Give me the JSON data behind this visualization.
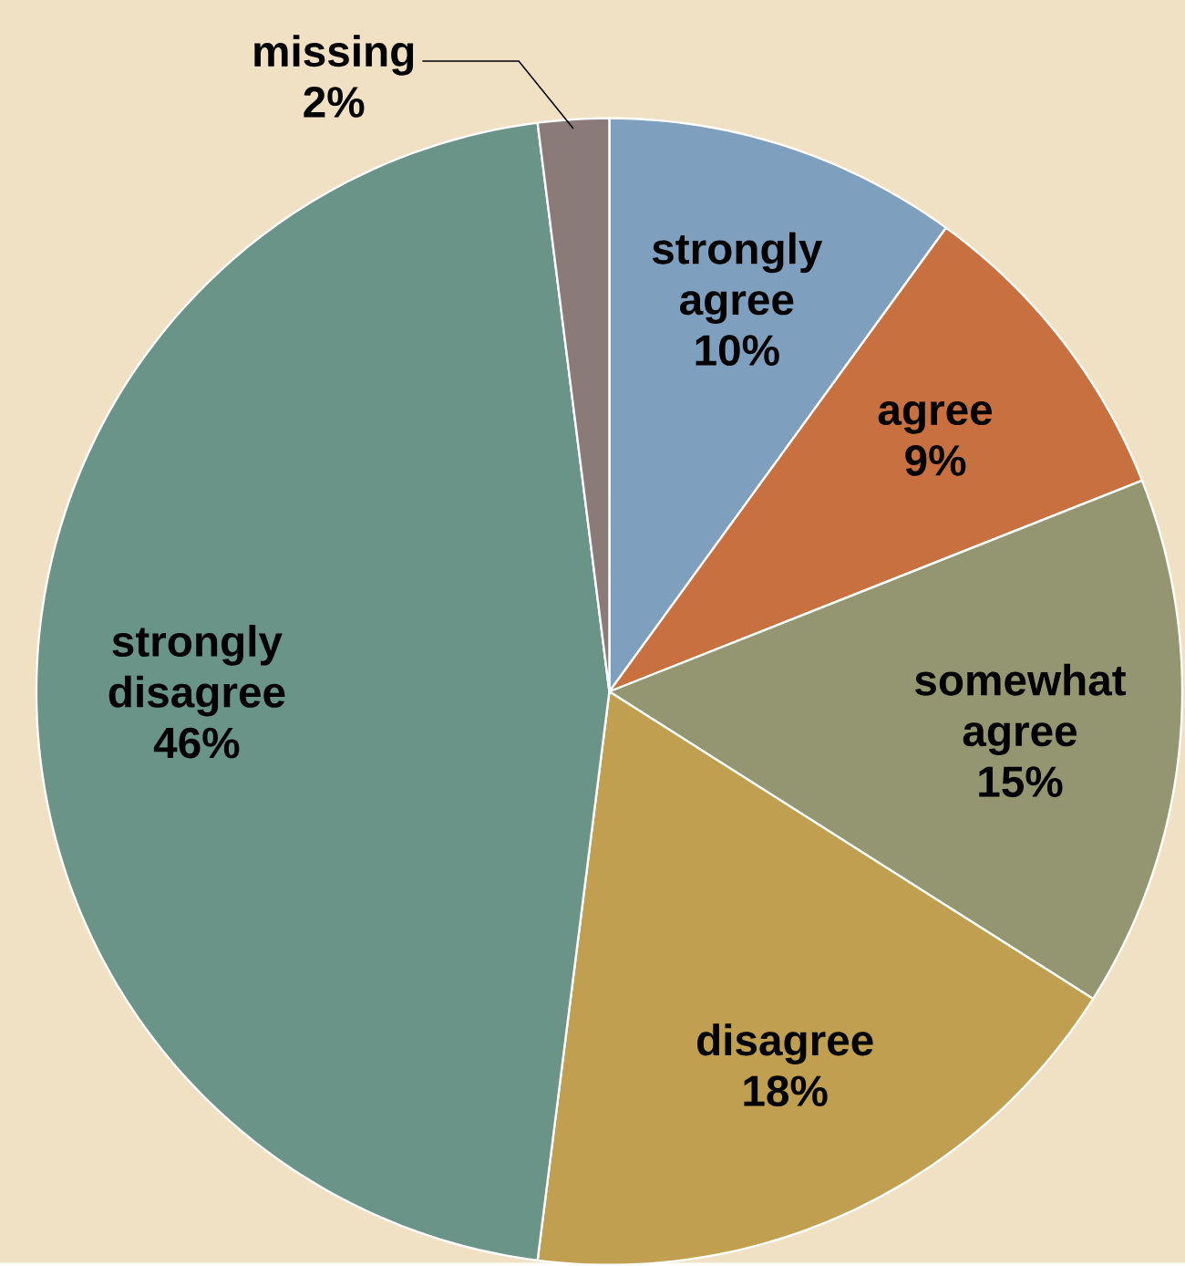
{
  "chart_data": {
    "type": "pie",
    "categories": [
      "strongly agree",
      "agree",
      "somewhat agree",
      "disagree",
      "strongly disagree",
      "missing"
    ],
    "values": [
      10,
      9,
      15,
      18,
      46,
      2
    ],
    "value_labels": [
      "10%",
      "9%",
      "15%",
      "18%",
      "46%",
      "2%"
    ],
    "colors": [
      "#7f9fbf",
      "#c87040",
      "#939670",
      "#c0a050",
      "#6a9488",
      "#8a7a78"
    ]
  }
}
